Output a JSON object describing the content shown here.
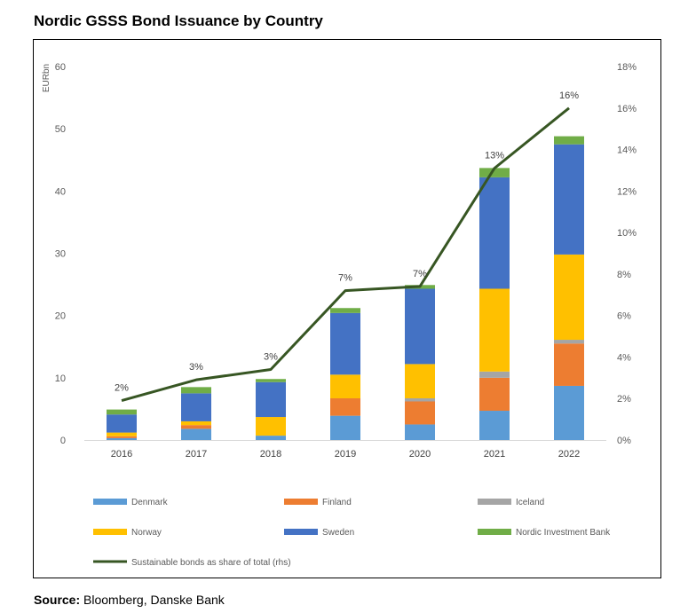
{
  "title": "Nordic GSSS Bond Issuance by Country",
  "source": {
    "label": "Source:",
    "text": " Bloomberg, Danske Bank"
  },
  "colors": {
    "Denmark": "#5b9bd5",
    "Finland": "#ed7d31",
    "Iceland": "#a5a5a5",
    "Norway": "#ffc000",
    "Sweden": "#4472c4",
    "Nordic Investment Bank": "#70ad47",
    "line": "#375623",
    "axis": "#d9d9d9",
    "text": "#595959"
  },
  "chart_data": {
    "type": "bar",
    "stacked": true,
    "categories": [
      "2016",
      "2017",
      "2018",
      "2019",
      "2020",
      "2021",
      "2022"
    ],
    "ylabel": "EURbn",
    "ylim": [
      0,
      60
    ],
    "y_ticks": [
      "0",
      "10",
      "20",
      "30",
      "40",
      "50",
      "60"
    ],
    "y2lim": [
      0,
      18
    ],
    "y2_ticks": [
      "0%",
      "2%",
      "4%",
      "6%",
      "8%",
      "10%",
      "12%",
      "14%",
      "16%",
      "18%"
    ],
    "grid": false,
    "legend_position": "bottom",
    "series": [
      {
        "name": "Denmark",
        "values": [
          0.3,
          1.8,
          0.7,
          3.9,
          2.5,
          4.7,
          8.7
        ]
      },
      {
        "name": "Finland",
        "values": [
          0.3,
          0.6,
          0.0,
          2.8,
          3.7,
          5.3,
          6.8
        ]
      },
      {
        "name": "Iceland",
        "values": [
          0.0,
          0.0,
          0.0,
          0.0,
          0.5,
          1.0,
          0.6
        ]
      },
      {
        "name": "Norway",
        "values": [
          0.6,
          0.6,
          3.0,
          3.8,
          5.5,
          13.3,
          13.7
        ]
      },
      {
        "name": "Sweden",
        "values": [
          2.9,
          4.5,
          5.6,
          9.9,
          12.1,
          17.9,
          17.7
        ]
      },
      {
        "name": "Nordic Investment Bank",
        "values": [
          0.8,
          1.0,
          0.5,
          0.8,
          0.6,
          1.5,
          1.3
        ]
      }
    ],
    "line_series": {
      "name": "Sustainable bonds as share of total (rhs)",
      "axis": "right",
      "values": [
        1.9,
        2.9,
        3.4,
        7.2,
        7.4,
        13.1,
        16.0
      ],
      "labels": [
        "2%",
        "3%",
        "3%",
        "7%",
        "7%",
        "13%",
        "16%"
      ]
    }
  }
}
